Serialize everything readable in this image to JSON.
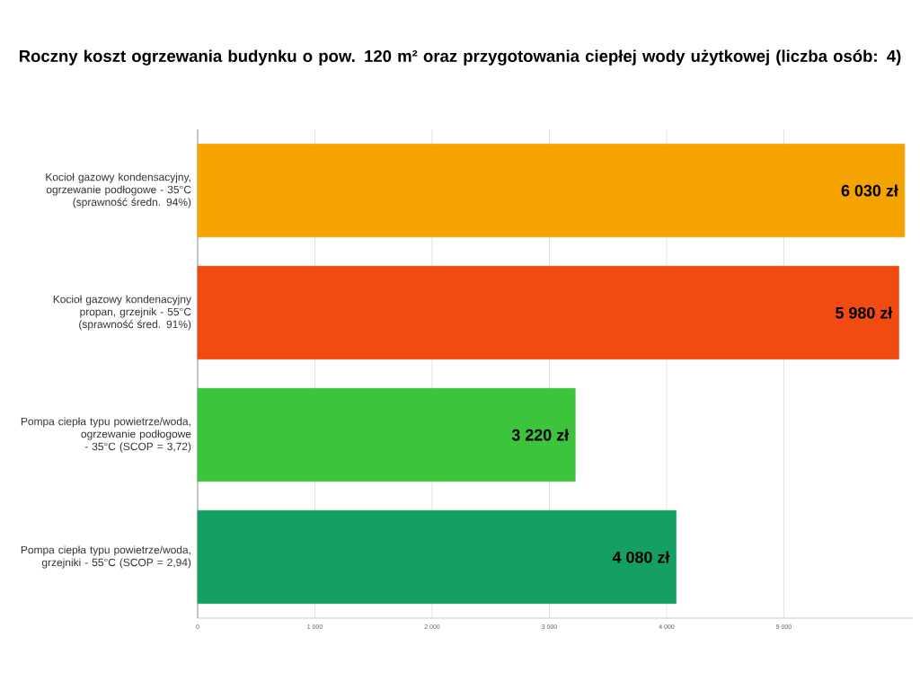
{
  "chart_data": {
    "type": "bar",
    "orientation": "horizontal",
    "title": "Roczny koszt ogrzewania budynku o pow. 120 m² oraz przygotowania ciepłej wody użytkowej (liczba osób: 4)",
    "categories": [
      "Kocioł gazowy kondensacyjny, ogrzewanie podłogowe - 35°C (sprawność średn. 94%)",
      "Kocioł gazowy kondenacyjny propan, grzejnik - 55°C (sprawność śred. 91%)",
      "Pompa ciepła typu powietrze/woda, ogrzewanie podłogowe - 35°C (SCOP = 3,72)",
      "Pompa ciepła typu powietrze/woda, grzejniki - 55°C (SCOP = 2,94)"
    ],
    "values": [
      6030,
      5980,
      3220,
      4080
    ],
    "value_labels": [
      "6 030 zł",
      "5 980 zł",
      "3 220 zł",
      "4 080 zł"
    ],
    "colors": [
      "#f5a300",
      "#f04b12",
      "#3cc43c",
      "#14a062"
    ],
    "xlim": [
      0,
      6100
    ],
    "xticks": [
      0,
      {
        "value": 1000,
        "label": "1 000"
      },
      {
        "value": 2000,
        "label": "2 000"
      },
      {
        "value": 3000,
        "label": "3 000"
      },
      {
        "value": 4000,
        "label": "4 000"
      },
      {
        "value": 5000,
        "label": "5 000"
      }
    ],
    "grid": "x"
  }
}
